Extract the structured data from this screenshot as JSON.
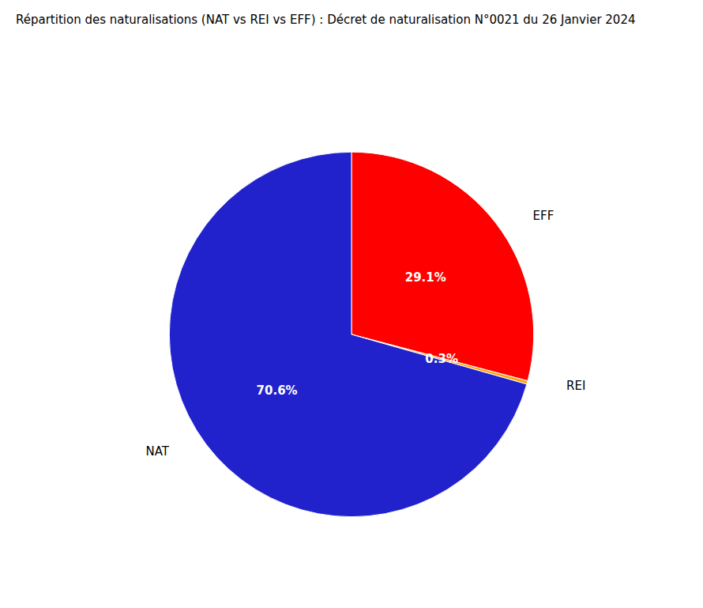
{
  "chart_data": {
    "type": "pie",
    "title": "Répartition des naturalisations (NAT vs REI vs EFF) : Décret de naturalisation N°0021 du 26 Janvier 2024",
    "categories": [
      "EFF",
      "REI",
      "NAT"
    ],
    "values": [
      29.1,
      0.3,
      70.6
    ],
    "value_labels": [
      "29.1%",
      "0.3%",
      "70.6%"
    ],
    "colors": [
      "#ff0000",
      "#ffa500",
      "#2222cc"
    ],
    "data_labels": true
  }
}
